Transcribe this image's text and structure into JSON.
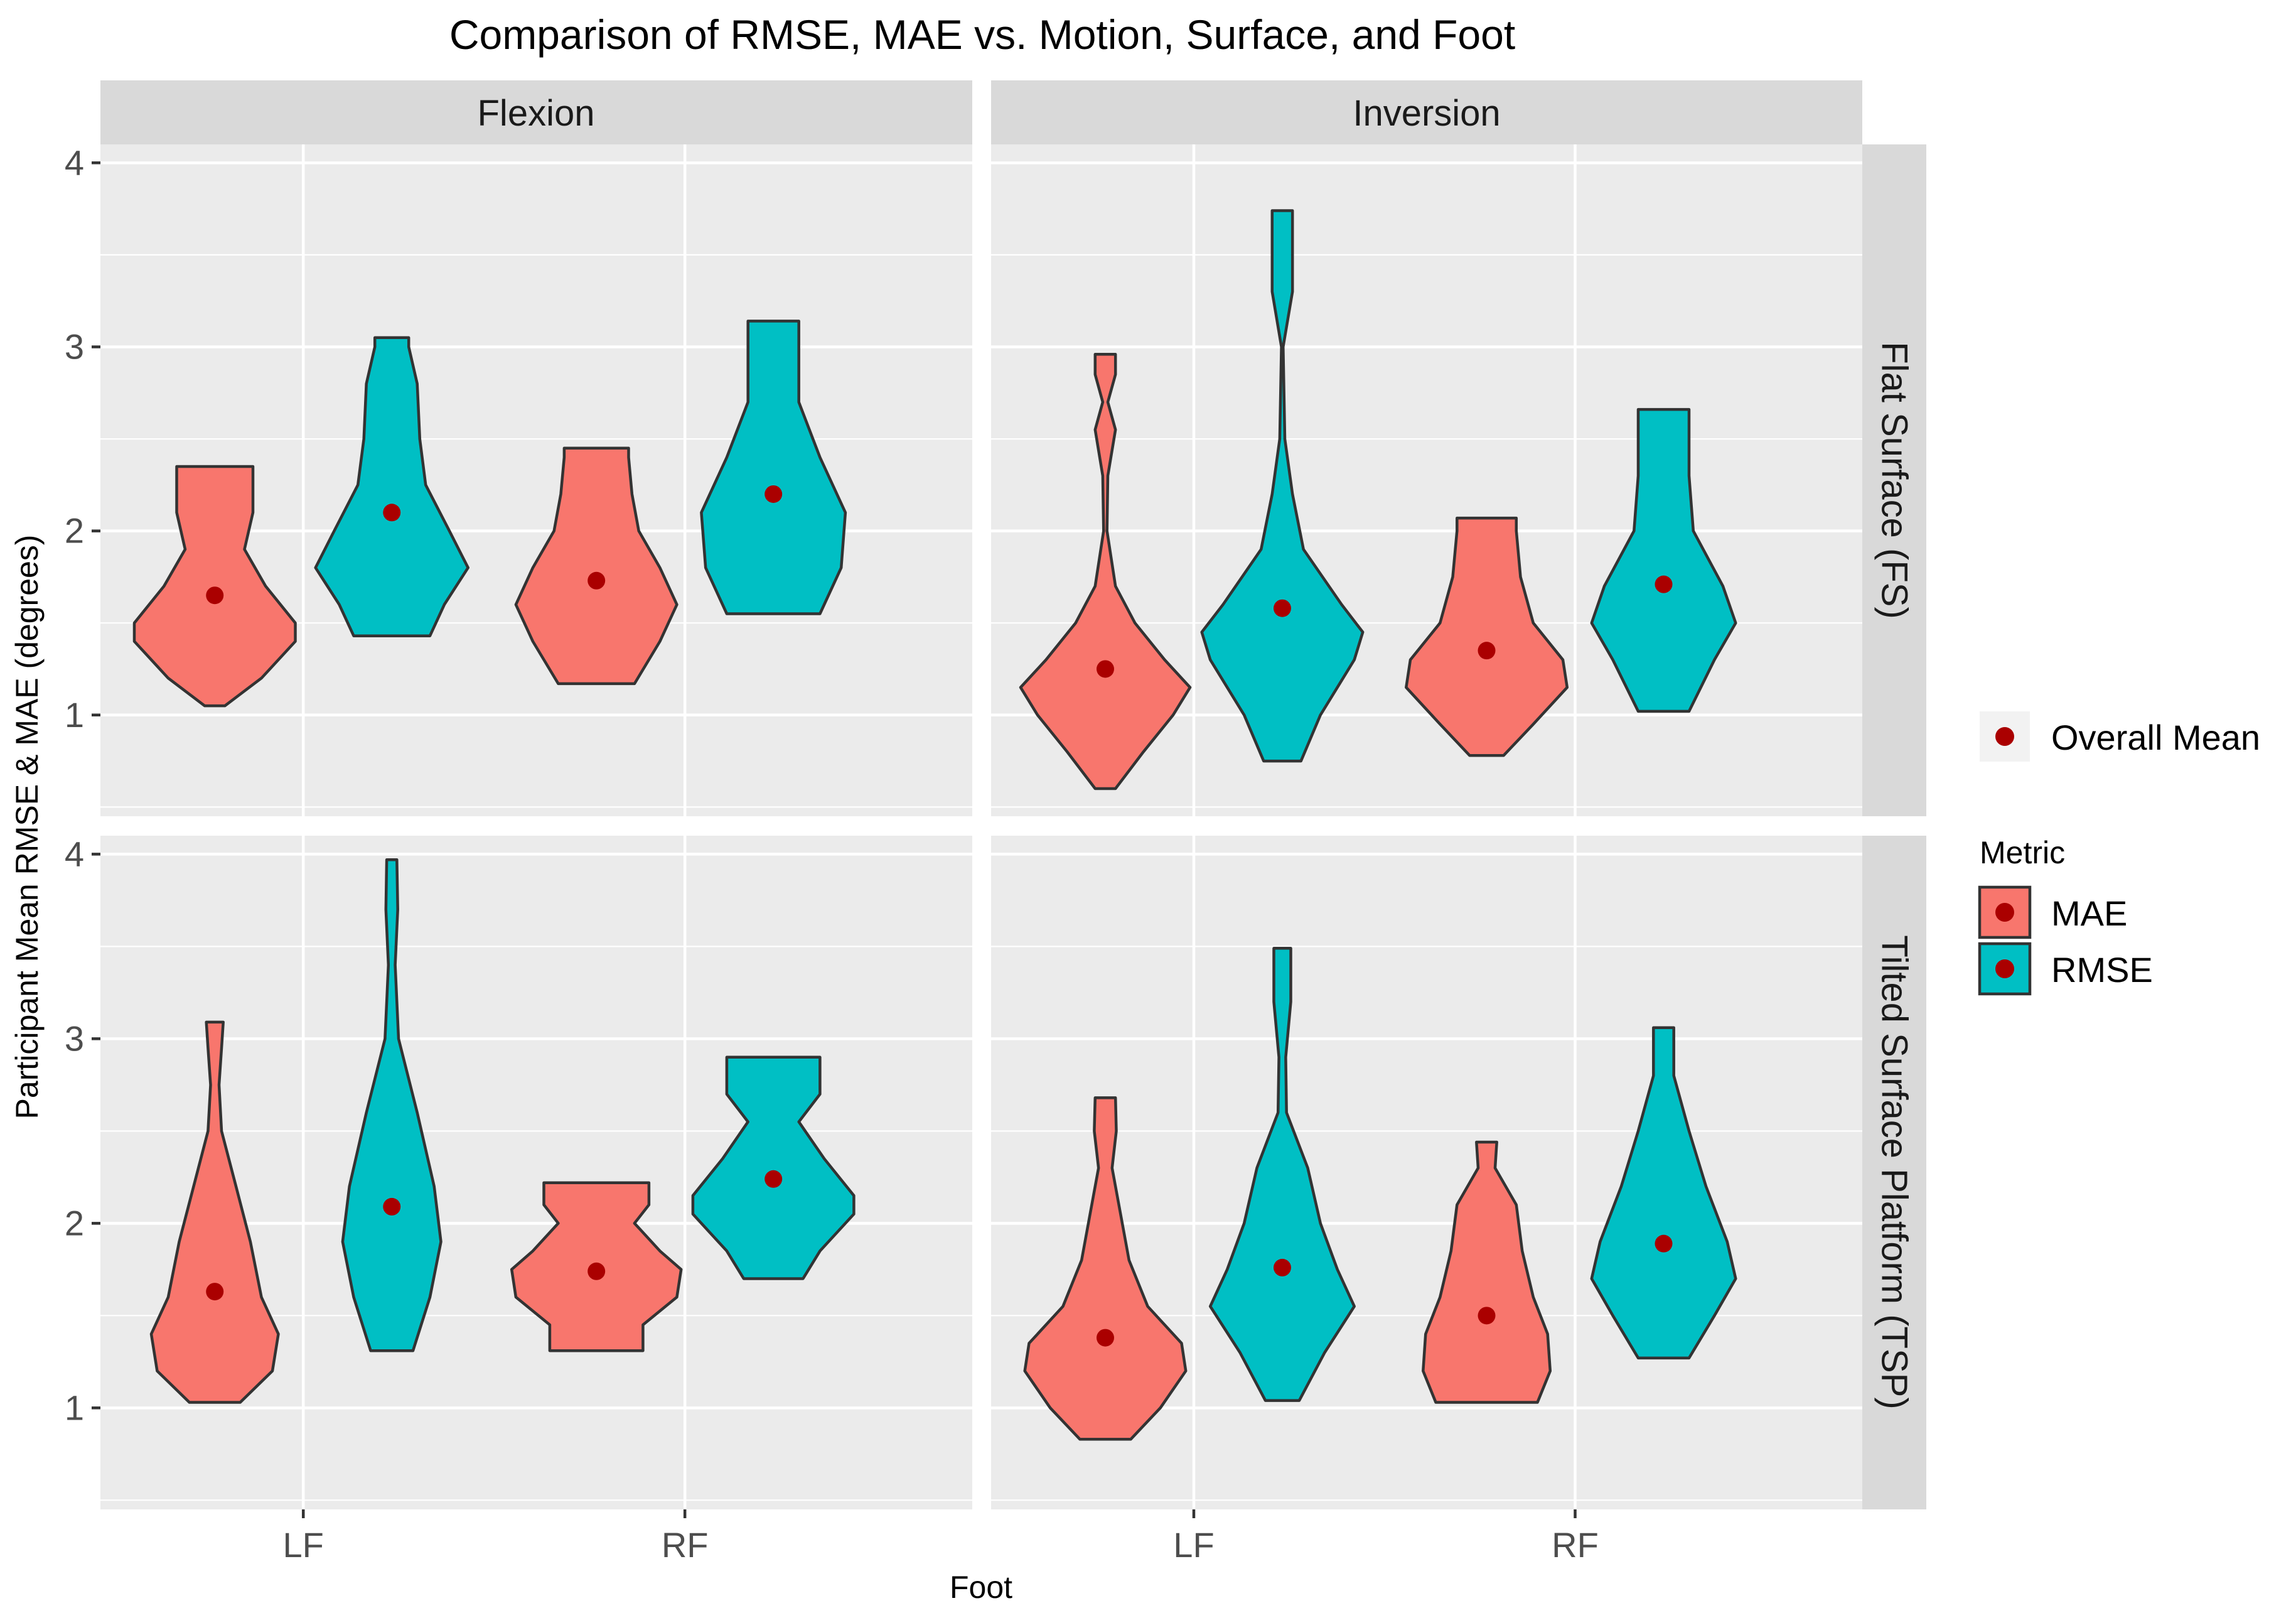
{
  "chart_data": {
    "type": "violin",
    "title": "Comparison of RMSE, MAE vs. Motion, Surface, and Foot",
    "xlabel": "Foot",
    "ylabel": "Participant Mean RMSE & MAE (degrees)",
    "categories": [
      "LF",
      "RF"
    ],
    "ylim": [
      0.45,
      4.1
    ],
    "yticks": [
      1,
      2,
      3,
      4
    ],
    "facet_cols": [
      "Flexion",
      "Inversion"
    ],
    "facet_rows": [
      "Flat Surface (FS)",
      "Tilted Surface Platform (TSP)"
    ],
    "legend": {
      "mean_label": "Overall Mean",
      "metric_title": "Metric",
      "entries": [
        {
          "name": "MAE",
          "color": "#F8766D"
        },
        {
          "name": "RMSE",
          "color": "#00BFC4"
        }
      ],
      "mean_color": "#AA0000"
    },
    "panels": [
      {
        "row": 0,
        "col": 0,
        "violins": [
          {
            "foot": "LF",
            "metric": "MAE",
            "min": 1.05,
            "max": 2.35,
            "mean": 1.65,
            "profile": [
              [
                1.05,
                0.12
              ],
              [
                1.2,
                0.55
              ],
              [
                1.4,
                0.95
              ],
              [
                1.5,
                0.95
              ],
              [
                1.7,
                0.6
              ],
              [
                1.9,
                0.35
              ],
              [
                2.1,
                0.45
              ],
              [
                2.3,
                0.45
              ],
              [
                2.35,
                0.45
              ]
            ]
          },
          {
            "foot": "LF",
            "metric": "RMSE",
            "min": 1.43,
            "max": 3.05,
            "mean": 2.1,
            "profile": [
              [
                1.43,
                0.45
              ],
              [
                1.6,
                0.62
              ],
              [
                1.8,
                0.9
              ],
              [
                2.0,
                0.68
              ],
              [
                2.25,
                0.4
              ],
              [
                2.5,
                0.33
              ],
              [
                2.8,
                0.3
              ],
              [
                3.0,
                0.2
              ],
              [
                3.05,
                0.2
              ]
            ]
          },
          {
            "foot": "RF",
            "metric": "MAE",
            "min": 1.17,
            "max": 2.45,
            "mean": 1.73,
            "profile": [
              [
                1.17,
                0.45
              ],
              [
                1.4,
                0.75
              ],
              [
                1.6,
                0.95
              ],
              [
                1.8,
                0.75
              ],
              [
                2.0,
                0.5
              ],
              [
                2.2,
                0.42
              ],
              [
                2.4,
                0.38
              ],
              [
                2.45,
                0.38
              ]
            ]
          },
          {
            "foot": "RF",
            "metric": "RMSE",
            "min": 1.55,
            "max": 3.14,
            "mean": 2.2,
            "profile": [
              [
                1.55,
                0.55
              ],
              [
                1.8,
                0.8
              ],
              [
                2.1,
                0.85
              ],
              [
                2.4,
                0.55
              ],
              [
                2.7,
                0.3
              ],
              [
                2.95,
                0.3
              ],
              [
                3.14,
                0.3
              ]
            ]
          }
        ]
      },
      {
        "row": 0,
        "col": 1,
        "violins": [
          {
            "foot": "LF",
            "metric": "MAE",
            "min": 0.6,
            "max": 2.96,
            "mean": 1.25,
            "profile": [
              [
                0.6,
                0.12
              ],
              [
                0.8,
                0.45
              ],
              [
                1.0,
                0.8
              ],
              [
                1.15,
                1.0
              ],
              [
                1.3,
                0.7
              ],
              [
                1.5,
                0.35
              ],
              [
                1.7,
                0.12
              ],
              [
                2.0,
                0.02
              ],
              [
                2.3,
                0.03
              ],
              [
                2.55,
                0.12
              ],
              [
                2.7,
                0.03
              ],
              [
                2.85,
                0.12
              ],
              [
                2.96,
                0.12
              ]
            ]
          },
          {
            "foot": "LF",
            "metric": "RMSE",
            "min": 0.75,
            "max": 3.74,
            "mean": 1.58,
            "profile": [
              [
                0.75,
                0.22
              ],
              [
                1.0,
                0.45
              ],
              [
                1.3,
                0.85
              ],
              [
                1.45,
                0.95
              ],
              [
                1.6,
                0.7
              ],
              [
                1.9,
                0.25
              ],
              [
                2.2,
                0.12
              ],
              [
                2.5,
                0.03
              ],
              [
                3.0,
                0.01
              ],
              [
                3.3,
                0.12
              ],
              [
                3.5,
                0.12
              ],
              [
                3.74,
                0.12
              ]
            ]
          },
          {
            "foot": "RF",
            "metric": "MAE",
            "min": 0.78,
            "max": 2.07,
            "mean": 1.35,
            "profile": [
              [
                0.78,
                0.2
              ],
              [
                0.95,
                0.55
              ],
              [
                1.15,
                0.95
              ],
              [
                1.3,
                0.9
              ],
              [
                1.5,
                0.55
              ],
              [
                1.75,
                0.4
              ],
              [
                2.0,
                0.35
              ],
              [
                2.07,
                0.35
              ]
            ]
          },
          {
            "foot": "RF",
            "metric": "RMSE",
            "min": 1.02,
            "max": 2.66,
            "mean": 1.71,
            "profile": [
              [
                1.02,
                0.3
              ],
              [
                1.3,
                0.6
              ],
              [
                1.5,
                0.85
              ],
              [
                1.7,
                0.7
              ],
              [
                2.0,
                0.35
              ],
              [
                2.3,
                0.3
              ],
              [
                2.55,
                0.3
              ],
              [
                2.66,
                0.3
              ]
            ]
          }
        ]
      },
      {
        "row": 1,
        "col": 0,
        "violins": [
          {
            "foot": "LF",
            "metric": "MAE",
            "min": 1.03,
            "max": 3.09,
            "mean": 1.63,
            "profile": [
              [
                1.03,
                0.3
              ],
              [
                1.2,
                0.68
              ],
              [
                1.4,
                0.75
              ],
              [
                1.6,
                0.55
              ],
              [
                1.9,
                0.42
              ],
              [
                2.2,
                0.25
              ],
              [
                2.5,
                0.08
              ],
              [
                2.75,
                0.05
              ],
              [
                2.95,
                0.08
              ],
              [
                3.09,
                0.1
              ]
            ]
          },
          {
            "foot": "LF",
            "metric": "RMSE",
            "min": 1.31,
            "max": 3.97,
            "mean": 2.09,
            "profile": [
              [
                1.31,
                0.25
              ],
              [
                1.6,
                0.45
              ],
              [
                1.9,
                0.58
              ],
              [
                2.2,
                0.5
              ],
              [
                2.6,
                0.3
              ],
              [
                3.0,
                0.08
              ],
              [
                3.4,
                0.04
              ],
              [
                3.7,
                0.07
              ],
              [
                3.97,
                0.06
              ]
            ]
          },
          {
            "foot": "RF",
            "metric": "MAE",
            "min": 1.31,
            "max": 2.22,
            "mean": 1.74,
            "profile": [
              [
                1.31,
                0.55
              ],
              [
                1.45,
                0.55
              ],
              [
                1.6,
                0.95
              ],
              [
                1.75,
                1.0
              ],
              [
                1.85,
                0.75
              ],
              [
                2.0,
                0.45
              ],
              [
                2.1,
                0.62
              ],
              [
                2.22,
                0.62
              ]
            ]
          },
          {
            "foot": "RF",
            "metric": "RMSE",
            "min": 1.7,
            "max": 2.9,
            "mean": 2.24,
            "profile": [
              [
                1.7,
                0.35
              ],
              [
                1.85,
                0.55
              ],
              [
                2.05,
                0.95
              ],
              [
                2.15,
                0.95
              ],
              [
                2.35,
                0.6
              ],
              [
                2.55,
                0.3
              ],
              [
                2.7,
                0.55
              ],
              [
                2.9,
                0.55
              ]
            ]
          }
        ]
      },
      {
        "row": 1,
        "col": 1,
        "violins": [
          {
            "foot": "LF",
            "metric": "MAE",
            "min": 0.83,
            "max": 2.68,
            "mean": 1.38,
            "profile": [
              [
                0.83,
                0.3
              ],
              [
                1.0,
                0.65
              ],
              [
                1.2,
                0.95
              ],
              [
                1.35,
                0.9
              ],
              [
                1.55,
                0.5
              ],
              [
                1.8,
                0.28
              ],
              [
                2.05,
                0.18
              ],
              [
                2.3,
                0.08
              ],
              [
                2.5,
                0.13
              ],
              [
                2.68,
                0.12
              ]
            ]
          },
          {
            "foot": "LF",
            "metric": "RMSE",
            "min": 1.04,
            "max": 3.49,
            "mean": 1.76,
            "profile": [
              [
                1.04,
                0.2
              ],
              [
                1.3,
                0.5
              ],
              [
                1.55,
                0.85
              ],
              [
                1.75,
                0.65
              ],
              [
                2.0,
                0.45
              ],
              [
                2.3,
                0.3
              ],
              [
                2.6,
                0.05
              ],
              [
                2.9,
                0.04
              ],
              [
                3.2,
                0.1
              ],
              [
                3.49,
                0.1
              ]
            ]
          },
          {
            "foot": "RF",
            "metric": "MAE",
            "min": 1.03,
            "max": 2.44,
            "mean": 1.5,
            "profile": [
              [
                1.03,
                0.6
              ],
              [
                1.2,
                0.75
              ],
              [
                1.4,
                0.72
              ],
              [
                1.6,
                0.55
              ],
              [
                1.85,
                0.42
              ],
              [
                2.1,
                0.35
              ],
              [
                2.3,
                0.1
              ],
              [
                2.44,
                0.12
              ]
            ]
          },
          {
            "foot": "RF",
            "metric": "RMSE",
            "min": 1.27,
            "max": 3.06,
            "mean": 1.89,
            "profile": [
              [
                1.27,
                0.3
              ],
              [
                1.5,
                0.6
              ],
              [
                1.7,
                0.85
              ],
              [
                1.9,
                0.75
              ],
              [
                2.2,
                0.5
              ],
              [
                2.5,
                0.3
              ],
              [
                2.8,
                0.12
              ],
              [
                3.06,
                0.12
              ]
            ]
          }
        ]
      }
    ]
  }
}
